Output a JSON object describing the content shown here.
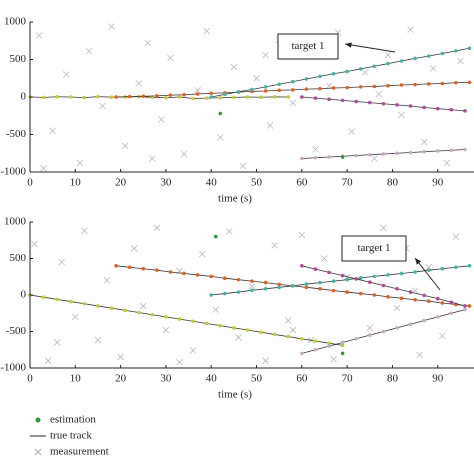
{
  "chart_data": [
    {
      "type": "scatter",
      "xlabel": "time (s)",
      "xlim": [
        0,
        98
      ],
      "ylim": [
        -1000,
        1000
      ],
      "xticks": [
        0,
        10,
        20,
        30,
        40,
        50,
        60,
        70,
        80,
        90
      ],
      "yticks": [
        -1000,
        -500,
        0,
        500,
        1000
      ],
      "annotation": "target 1",
      "series": [
        {
          "marker": "x",
          "color": "#b8b8b8",
          "x": [
            2,
            5,
            8,
            11,
            13,
            16,
            18,
            21,
            24,
            26,
            29,
            31,
            34,
            37,
            39,
            42,
            45,
            47,
            50,
            53,
            55,
            58,
            61,
            63,
            66,
            68,
            71,
            74,
            76,
            79,
            82,
            84,
            87,
            89,
            92,
            95,
            3,
            27,
            52,
            77
          ],
          "values": [
            820,
            -450,
            300,
            -880,
            610,
            -120,
            940,
            -650,
            180,
            720,
            -300,
            520,
            -760,
            90,
            880,
            -540,
            400,
            -920,
            250,
            -380,
            760,
            -80,
            600,
            -700,
            150,
            860,
            -460,
            330,
            -820,
            560,
            -240,
            900,
            -600,
            380,
            -880,
            480,
            -950,
            -820,
            560,
            40
          ]
        },
        {
          "marker": "dot",
          "line": true,
          "color": "#c8c832",
          "x": [
            0,
            3,
            6,
            9,
            12,
            15,
            18,
            21,
            24,
            27,
            30,
            33,
            36,
            39,
            42,
            45,
            48,
            51,
            54,
            57
          ],
          "values": [
            0,
            -5,
            3,
            0,
            -8,
            5,
            -2,
            0,
            6,
            -4,
            -10,
            0,
            -20,
            -15,
            -10,
            -5,
            0,
            -3,
            2,
            0
          ]
        },
        {
          "marker": "dot",
          "line": true,
          "color": "#e0601e",
          "x": [
            19,
            22,
            25,
            28,
            31,
            34,
            37,
            40,
            43,
            46,
            49,
            52,
            55,
            58,
            61,
            64,
            67,
            70,
            73,
            76,
            79,
            82,
            85,
            88,
            91,
            94,
            97
          ],
          "values": [
            0,
            5,
            10,
            15,
            25,
            30,
            40,
            50,
            55,
            65,
            75,
            80,
            90,
            95,
            105,
            110,
            120,
            125,
            135,
            140,
            150,
            160,
            165,
            175,
            180,
            190,
            195
          ]
        },
        {
          "marker": "dot",
          "line": true,
          "color": "#40b4a8",
          "x": [
            40,
            43,
            46,
            49,
            52,
            55,
            58,
            61,
            64,
            67,
            70,
            73,
            76,
            79,
            82,
            85,
            88,
            91,
            94,
            97
          ],
          "values": [
            0,
            35,
            70,
            100,
            135,
            170,
            205,
            240,
            275,
            310,
            340,
            375,
            410,
            445,
            480,
            515,
            545,
            580,
            615,
            650
          ]
        },
        {
          "marker": "dot",
          "line": true,
          "color": "#b04898",
          "x": [
            60,
            63,
            66,
            69,
            72,
            75,
            78,
            81,
            84,
            87,
            90,
            93,
            96
          ],
          "values": [
            0,
            -15,
            -30,
            -45,
            -60,
            -75,
            -90,
            -105,
            -120,
            -140,
            -155,
            -170,
            -185
          ]
        },
        {
          "marker": "dot",
          "line": true,
          "color": "#c8a8c8",
          "x": [
            60,
            63,
            66,
            69,
            72,
            75,
            78,
            81,
            84,
            87,
            90,
            93,
            96
          ],
          "values": [
            -820,
            -810,
            -800,
            -790,
            -780,
            -770,
            -760,
            -750,
            -740,
            -730,
            -720,
            -710,
            -700
          ]
        },
        {
          "marker": "dot",
          "color": "#2a9a3a",
          "x": [
            42,
            69
          ],
          "values": [
            -220,
            -800
          ]
        }
      ]
    },
    {
      "type": "scatter",
      "xlabel": "time (s)",
      "xlim": [
        0,
        98
      ],
      "ylim": [
        -1000,
        1000
      ],
      "xticks": [
        0,
        10,
        20,
        30,
        40,
        50,
        60,
        70,
        80,
        90
      ],
      "yticks": [
        -1000,
        -500,
        0,
        500,
        1000
      ],
      "annotation": "target 1",
      "series": [
        {
          "marker": "x",
          "color": "#b8b8b8",
          "x": [
            1,
            4,
            7,
            10,
            12,
            15,
            17,
            20,
            23,
            25,
            28,
            30,
            33,
            36,
            38,
            41,
            44,
            46,
            49,
            52,
            54,
            57,
            60,
            62,
            65,
            67,
            70,
            73,
            75,
            78,
            81,
            83,
            86,
            88,
            91,
            94,
            6,
            33,
            58,
            85
          ],
          "values": [
            700,
            -900,
            450,
            -300,
            880,
            -620,
            200,
            -850,
            640,
            -150,
            920,
            -480,
            330,
            -760,
            560,
            -200,
            870,
            -580,
            120,
            -900,
            680,
            -350,
            820,
            -620,
            500,
            -880,
            250,
            720,
            -450,
            920,
            -180,
            640,
            -820,
            380,
            -560,
            800,
            -650,
            -920,
            -480,
            60
          ]
        },
        {
          "marker": "dot",
          "line": true,
          "color": "#c8c832",
          "x": [
            0,
            3,
            6,
            9,
            12,
            15,
            18,
            21,
            24,
            27,
            30,
            33,
            36,
            39,
            42,
            45,
            48,
            51,
            54,
            57,
            60,
            63,
            66,
            69
          ],
          "values": [
            0,
            -30,
            -60,
            -90,
            -120,
            -150,
            -180,
            -210,
            -240,
            -270,
            -300,
            -330,
            -360,
            -390,
            -420,
            -450,
            -480,
            -510,
            -540,
            -570,
            -600,
            -630,
            -660,
            -690
          ]
        },
        {
          "marker": "dot",
          "line": true,
          "color": "#e0601e",
          "x": [
            19,
            22,
            25,
            28,
            31,
            34,
            37,
            40,
            43,
            46,
            49,
            52,
            55,
            58,
            61,
            64,
            67,
            70,
            73,
            76,
            79,
            82,
            85,
            88,
            91,
            94,
            97
          ],
          "values": [
            400,
            380,
            360,
            340,
            315,
            295,
            275,
            255,
            230,
            210,
            190,
            170,
            145,
            125,
            105,
            85,
            60,
            40,
            20,
            0,
            -25,
            -45,
            -65,
            -85,
            -110,
            -130,
            -150
          ]
        },
        {
          "marker": "dot",
          "line": true,
          "color": "#40b4a8",
          "x": [
            40,
            43,
            46,
            49,
            52,
            55,
            58,
            61,
            64,
            67,
            70,
            73,
            76,
            79,
            82,
            85,
            88,
            91,
            94,
            97
          ],
          "values": [
            0,
            20,
            40,
            65,
            85,
            105,
            125,
            150,
            170,
            190,
            210,
            235,
            255,
            275,
            295,
            315,
            340,
            360,
            380,
            400
          ]
        },
        {
          "marker": "dot",
          "line": true,
          "color": "#b04898",
          "x": [
            60,
            63,
            66,
            69,
            72,
            75,
            78,
            81,
            84,
            87,
            90,
            93,
            96
          ],
          "values": [
            400,
            355,
            310,
            265,
            220,
            175,
            130,
            85,
            40,
            -5,
            -50,
            -100,
            -150
          ]
        },
        {
          "marker": "dot",
          "line": true,
          "color": "#c8a8c8",
          "x": [
            60,
            63,
            66,
            69,
            72,
            75,
            78,
            81,
            84,
            87,
            90,
            93,
            96
          ],
          "values": [
            -800,
            -750,
            -700,
            -650,
            -600,
            -550,
            -500,
            -450,
            -400,
            -350,
            -300,
            -250,
            -200
          ]
        },
        {
          "marker": "dot",
          "color": "#2a9a3a",
          "x": [
            41,
            69
          ],
          "values": [
            800,
            -800
          ]
        }
      ]
    }
  ],
  "legend": {
    "estimation": "estimation",
    "true_track": "true track",
    "measurement": "measurement"
  }
}
